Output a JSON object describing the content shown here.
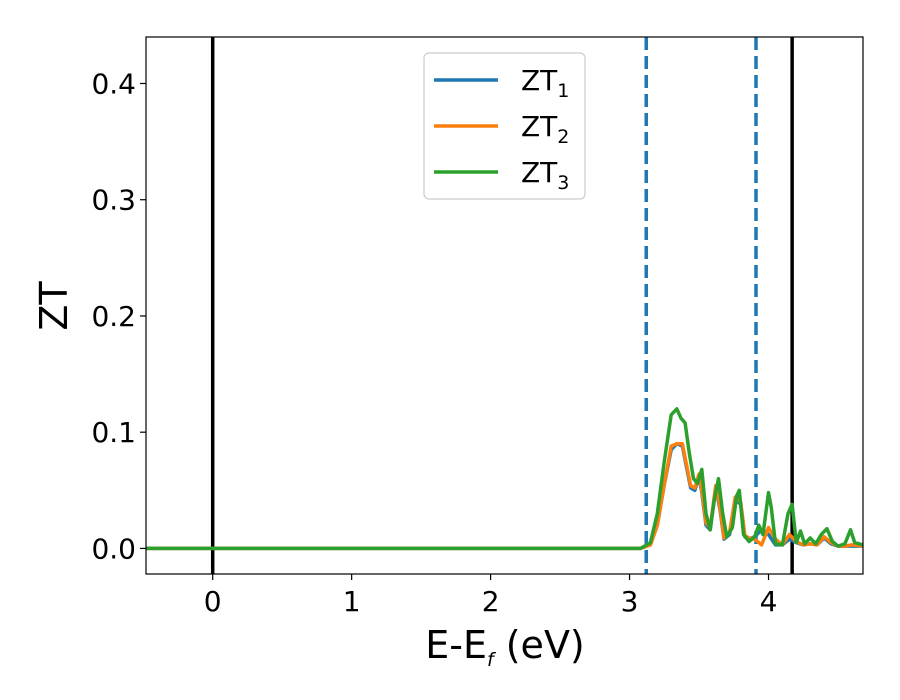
{
  "chart_data": {
    "type": "line",
    "xlabel_main": "E-E",
    "xlabel_sub": "f",
    "xlabel_unit": " (eV)",
    "ylabel": "ZT",
    "xlim": [
      -0.48,
      4.68
    ],
    "ylim": [
      -0.022,
      0.44
    ],
    "x_ticks": [
      0,
      1,
      2,
      3,
      4
    ],
    "x_tick_labels": [
      "0",
      "1",
      "2",
      "3",
      "4"
    ],
    "y_ticks": [
      0.0,
      0.1,
      0.2,
      0.3,
      0.4
    ],
    "y_tick_labels": [
      "0.0",
      "0.1",
      "0.2",
      "0.3",
      "0.4"
    ],
    "grid": false,
    "legend_position": "top-center",
    "vlines": [
      {
        "x": 0.0,
        "style": "solid",
        "color": "#000000"
      },
      {
        "x": 4.17,
        "style": "solid",
        "color": "#000000"
      },
      {
        "x": 3.12,
        "style": "dashed",
        "color": "#1f77b4"
      },
      {
        "x": 3.91,
        "style": "dashed",
        "color": "#1f77b4"
      }
    ],
    "series": [
      {
        "name": "ZT",
        "sub": "1",
        "color": "#1f77b4",
        "x": [
          -0.48,
          3.08,
          3.15,
          3.2,
          3.25,
          3.3,
          3.34,
          3.38,
          3.41,
          3.44,
          3.47,
          3.5,
          3.52,
          3.55,
          3.58,
          3.62,
          3.65,
          3.68,
          3.72,
          3.76,
          3.8,
          3.83,
          3.86,
          3.9,
          3.95,
          4.0,
          4.05,
          4.1,
          4.15,
          4.2,
          4.25,
          4.3,
          4.35,
          4.4,
          4.45,
          4.5,
          4.55,
          4.6,
          4.68
        ],
        "y": [
          0.0,
          0.0,
          0.003,
          0.02,
          0.055,
          0.085,
          0.09,
          0.088,
          0.07,
          0.052,
          0.05,
          0.062,
          0.048,
          0.02,
          0.016,
          0.052,
          0.034,
          0.008,
          0.012,
          0.042,
          0.038,
          0.01,
          0.008,
          0.01,
          0.016,
          0.012,
          0.003,
          0.003,
          0.008,
          0.005,
          0.003,
          0.004,
          0.003,
          0.009,
          0.004,
          0.002,
          0.002,
          0.002,
          0.002
        ]
      },
      {
        "name": "ZT",
        "sub": "2",
        "color": "#ff7f0e",
        "x": [
          -0.48,
          3.08,
          3.15,
          3.2,
          3.25,
          3.3,
          3.34,
          3.38,
          3.41,
          3.44,
          3.47,
          3.5,
          3.52,
          3.55,
          3.58,
          3.62,
          3.65,
          3.68,
          3.72,
          3.76,
          3.8,
          3.83,
          3.86,
          3.9,
          3.95,
          4.0,
          4.05,
          4.1,
          4.15,
          4.2,
          4.25,
          4.3,
          4.35,
          4.4,
          4.45,
          4.5,
          4.55,
          4.6,
          4.68
        ],
        "y": [
          0.0,
          0.0,
          0.003,
          0.02,
          0.055,
          0.088,
          0.09,
          0.09,
          0.072,
          0.054,
          0.052,
          0.064,
          0.05,
          0.022,
          0.018,
          0.054,
          0.036,
          0.009,
          0.014,
          0.044,
          0.04,
          0.011,
          0.009,
          0.008,
          0.003,
          0.018,
          0.008,
          0.003,
          0.012,
          0.006,
          0.003,
          0.004,
          0.003,
          0.01,
          0.005,
          0.002,
          0.002,
          0.003,
          0.002
        ]
      },
      {
        "name": "ZT",
        "sub": "3",
        "color": "#2ca02c",
        "x": [
          -0.48,
          3.08,
          3.15,
          3.2,
          3.25,
          3.3,
          3.34,
          3.37,
          3.4,
          3.43,
          3.46,
          3.49,
          3.52,
          3.55,
          3.58,
          3.61,
          3.64,
          3.67,
          3.7,
          3.74,
          3.77,
          3.79,
          3.82,
          3.86,
          3.9,
          3.93,
          3.96,
          4.0,
          4.02,
          4.05,
          4.1,
          4.14,
          4.17,
          4.2,
          4.23,
          4.26,
          4.3,
          4.34,
          4.38,
          4.42,
          4.46,
          4.5,
          4.55,
          4.59,
          4.62,
          4.68
        ],
        "y": [
          0.0,
          0.0,
          0.005,
          0.03,
          0.075,
          0.115,
          0.12,
          0.112,
          0.108,
          0.082,
          0.06,
          0.056,
          0.068,
          0.03,
          0.016,
          0.042,
          0.06,
          0.03,
          0.01,
          0.018,
          0.045,
          0.05,
          0.012,
          0.006,
          0.01,
          0.02,
          0.012,
          0.048,
          0.035,
          0.004,
          0.003,
          0.03,
          0.038,
          0.005,
          0.015,
          0.004,
          0.009,
          0.004,
          0.012,
          0.017,
          0.006,
          0.002,
          0.004,
          0.016,
          0.005,
          0.003
        ]
      }
    ]
  }
}
